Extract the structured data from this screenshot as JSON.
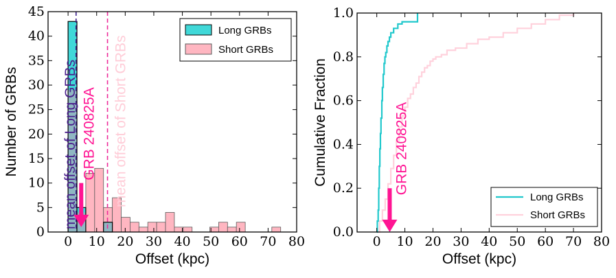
{
  "colors": {
    "long": "#40d8d8",
    "long_edge": "#000000",
    "short": "#ffb6c1",
    "short_edge": "#5a5a5a",
    "overlap": "#8fb7c2",
    "mean_long_line": "#3c1e8c",
    "mean_short_line": "#ee2a9a",
    "grb_annotation": "#ff1493",
    "mean_long_text": "#4b1e8c",
    "mean_short_text": "#ffcdd8",
    "long_cdf": "#20c8cc",
    "short_cdf": "#ffd1dc"
  },
  "chart_data": [
    {
      "type": "bar",
      "xlabel": "Offset (kpc)",
      "ylabel": "Number of GRBs",
      "xlim": [
        -7,
        80
      ],
      "ylim": [
        0,
        45
      ],
      "xticks": [
        0,
        10,
        20,
        30,
        40,
        50,
        60,
        70,
        80
      ],
      "yticks": [
        0,
        5,
        10,
        15,
        20,
        25,
        30,
        35,
        40,
        45
      ],
      "bin_width": 3.1,
      "legend_position": "top-right",
      "series": [
        {
          "name": "Long GRBs",
          "bins": [
            [
              0,
              43
            ],
            [
              3.1,
              5
            ],
            [
              6.2,
              0
            ],
            [
              9.3,
              0
            ],
            [
              12.4,
              2
            ]
          ]
        },
        {
          "name": "Short GRBs",
          "bins": [
            [
              0,
              29
            ],
            [
              3.1,
              4
            ],
            [
              6.2,
              12
            ],
            [
              9.3,
              13
            ],
            [
              12.4,
              5
            ],
            [
              15.5,
              7
            ],
            [
              18.6,
              3
            ],
            [
              21.7,
              2
            ],
            [
              24.8,
              1
            ],
            [
              27.9,
              2
            ],
            [
              31,
              2
            ],
            [
              34.1,
              4
            ],
            [
              37.2,
              1
            ],
            [
              40.3,
              1
            ],
            [
              49.6,
              1
            ],
            [
              52.7,
              2
            ],
            [
              55.8,
              1
            ],
            [
              58.9,
              2
            ],
            [
              71.3,
              1
            ]
          ]
        }
      ],
      "annotations": {
        "mean_long": {
          "x": 2.8,
          "label": "mean offset of Long GRBs"
        },
        "mean_short": {
          "x": 13.8,
          "label": "mean offset of Short GRBs"
        },
        "grb": {
          "x": 4.6,
          "y_from": 10,
          "y_to": 1,
          "label": "GRB 240825A"
        }
      }
    },
    {
      "type": "line",
      "xlabel": "Offset (kpc)",
      "ylabel": "Cumulative Fraction",
      "xlim": [
        -7,
        80
      ],
      "ylim": [
        0,
        1
      ],
      "xticks": [
        0,
        10,
        20,
        30,
        40,
        50,
        60,
        70,
        80
      ],
      "yticks": [
        0,
        0.2,
        0.4,
        0.6,
        0.8,
        1.0
      ],
      "ytick_labels": [
        "0.0",
        "0.2",
        "0.4",
        "0.6",
        "0.8",
        "1.0"
      ],
      "legend_position": "bottom-right",
      "series": [
        {
          "name": "Long GRBs",
          "x": [
            0,
            0.2,
            0.5,
            0.7,
            0.9,
            1.1,
            1.3,
            1.5,
            1.8,
            2.0,
            2.3,
            2.6,
            2.9,
            3.2,
            3.6,
            4.0,
            4.5,
            5.0,
            6.0,
            7.5,
            9.0,
            10.5,
            12.0,
            13.5,
            14.5
          ],
          "y": [
            0,
            0.05,
            0.1,
            0.2,
            0.3,
            0.38,
            0.45,
            0.52,
            0.6,
            0.66,
            0.72,
            0.77,
            0.8,
            0.82,
            0.85,
            0.87,
            0.89,
            0.91,
            0.93,
            0.95,
            0.96,
            0.96,
            0.96,
            0.96,
            1.0
          ]
        },
        {
          "name": "Short GRBs",
          "x": [
            0,
            1,
            2,
            3,
            4,
            5,
            6,
            7,
            8,
            9,
            10,
            11,
            12,
            13,
            14,
            15,
            16,
            17,
            18,
            19,
            20,
            21,
            23,
            25,
            28,
            32,
            36,
            40,
            45,
            50,
            55,
            60,
            65,
            70
          ],
          "y": [
            0,
            0.05,
            0.1,
            0.15,
            0.22,
            0.29,
            0.35,
            0.42,
            0.48,
            0.53,
            0.57,
            0.61,
            0.63,
            0.66,
            0.68,
            0.71,
            0.73,
            0.75,
            0.76,
            0.78,
            0.79,
            0.8,
            0.81,
            0.83,
            0.84,
            0.86,
            0.88,
            0.89,
            0.91,
            0.93,
            0.95,
            0.97,
            0.99,
            1.0
          ]
        }
      ],
      "annotations": {
        "grb": {
          "x": 4.6,
          "y_from": 0.2,
          "y_to": 0.0,
          "label": "GRB 240825A"
        }
      }
    }
  ]
}
